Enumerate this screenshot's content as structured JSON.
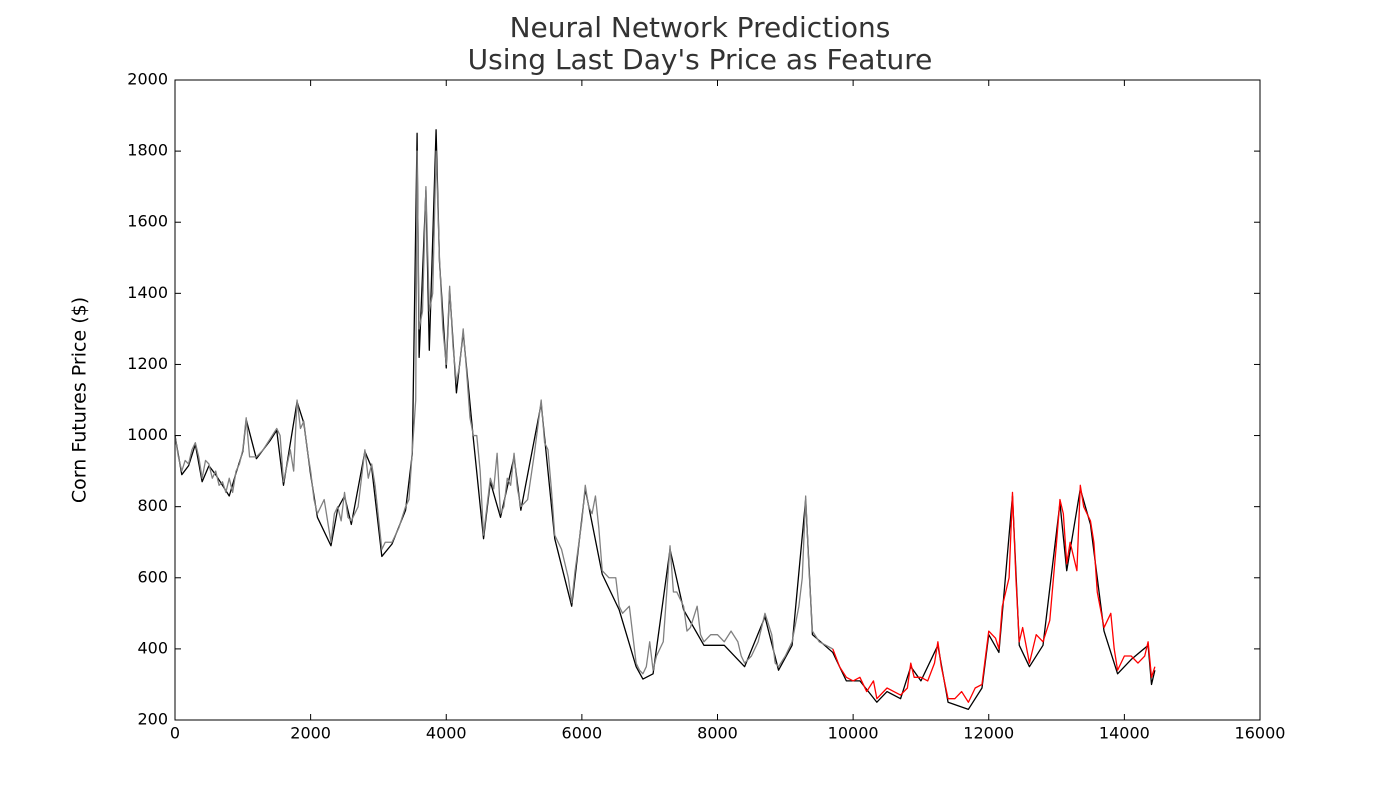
{
  "chart_data": {
    "type": "line",
    "title": [
      "Neural Network Predictions",
      "Using Last Day's Price as Feature"
    ],
    "y_label": "Corn Futures Price ($)",
    "xlim": [
      0,
      16000
    ],
    "xticks": [
      0,
      2000,
      4000,
      6000,
      8000,
      10000,
      12000,
      14000,
      16000
    ],
    "ylim": [
      200,
      2000
    ],
    "yticks": [
      200,
      400,
      600,
      800,
      1000,
      1200,
      1400,
      1600,
      1800,
      2000
    ],
    "series": [
      {
        "color": "#000000",
        "x": [
          0,
          100,
          200,
          300,
          400,
          500,
          600,
          700,
          800,
          900,
          1000,
          1050,
          1200,
          1400,
          1500,
          1600,
          1800,
          1900,
          2000,
          2100,
          2300,
          2400,
          2500,
          2600,
          2800,
          2900,
          3050,
          3200,
          3400,
          3500,
          3570,
          3600,
          3700,
          3750,
          3850,
          3900,
          4000,
          4050,
          4150,
          4250,
          4400,
          4550,
          4650,
          4800,
          5000,
          5100,
          5400,
          5600,
          5850,
          6050,
          6300,
          6550,
          6800,
          6900,
          7050,
          7300,
          7500,
          7800,
          8100,
          8400,
          8700,
          8900,
          9100,
          9300,
          9400,
          9700,
          9900,
          10100,
          10350,
          10500,
          10700,
          10850,
          11000,
          11250,
          11400,
          11700,
          11900,
          12000,
          12150,
          12350,
          12450,
          12600,
          12800,
          13050,
          13150,
          13350,
          13500,
          13700,
          13900,
          14100,
          14350,
          14400,
          14450
        ],
        "values": [
          1000,
          890,
          915,
          975,
          870,
          915,
          890,
          860,
          830,
          895,
          955,
          1045,
          935,
          985,
          1015,
          860,
          1095,
          1035,
          890,
          770,
          690,
          795,
          830,
          750,
          955,
          910,
          660,
          695,
          790,
          950,
          1850,
          1220,
          1690,
          1240,
          1860,
          1490,
          1190,
          1410,
          1120,
          1290,
          990,
          710,
          870,
          770,
          940,
          790,
          1090,
          710,
          520,
          850,
          610,
          510,
          350,
          315,
          330,
          680,
          510,
          410,
          410,
          350,
          490,
          340,
          410,
          820,
          440,
          390,
          310,
          310,
          250,
          280,
          260,
          350,
          310,
          410,
          250,
          230,
          290,
          440,
          390,
          830,
          410,
          350,
          410,
          810,
          620,
          850,
          750,
          450,
          330,
          370,
          410,
          300,
          340
        ]
      },
      {
        "color": "#808080",
        "x": [
          0,
          50,
          100,
          150,
          200,
          250,
          300,
          350,
          400,
          450,
          500,
          550,
          600,
          650,
          700,
          750,
          800,
          850,
          900,
          950,
          1000,
          1050,
          1100,
          1200,
          1300,
          1400,
          1500,
          1550,
          1600,
          1700,
          1750,
          1800,
          1850,
          1900,
          1950,
          2000,
          2050,
          2100,
          2200,
          2250,
          2300,
          2350,
          2400,
          2450,
          2500,
          2550,
          2600,
          2700,
          2750,
          2800,
          2850,
          2900,
          2950,
          3000,
          3050,
          3100,
          3200,
          3300,
          3400,
          3450,
          3500,
          3550,
          3570,
          3600,
          3650,
          3700,
          3750,
          3800,
          3850,
          3900,
          3950,
          4000,
          4050,
          4100,
          4150,
          4200,
          4250,
          4300,
          4350,
          4400,
          4450,
          4500,
          4550,
          4600,
          4650,
          4700,
          4750,
          4800,
          4850,
          4900,
          4950,
          5000,
          5050,
          5100,
          5200,
          5300,
          5400,
          5450,
          5500,
          5550,
          5600,
          5700,
          5800,
          5850,
          5900,
          6000,
          6050,
          6100,
          6150,
          6200,
          6250,
          6300,
          6400,
          6500,
          6550,
          6600,
          6700,
          6800,
          6850,
          6900,
          6950,
          7000,
          7050,
          7100,
          7200,
          7300,
          7350,
          7400,
          7500,
          7550,
          7600,
          7700,
          7750,
          7800,
          7900,
          8000,
          8100,
          8200,
          8300,
          8350,
          8400,
          8500,
          8600,
          8700,
          8800,
          8850,
          8900,
          9000,
          9100,
          9200,
          9250,
          9300,
          9350,
          9400,
          9500,
          9600,
          9700
        ],
        "values": [
          1000,
          940,
          900,
          930,
          920,
          960,
          980,
          940,
          880,
          930,
          920,
          880,
          900,
          860,
          870,
          840,
          880,
          840,
          900,
          920,
          960,
          1050,
          940,
          940,
          960,
          990,
          1020,
          1000,
          870,
          960,
          900,
          1100,
          1020,
          1040,
          960,
          900,
          820,
          780,
          820,
          760,
          700,
          780,
          800,
          760,
          840,
          770,
          760,
          800,
          880,
          960,
          880,
          920,
          860,
          770,
          680,
          700,
          700,
          740,
          800,
          820,
          960,
          1100,
          1800,
          1300,
          1350,
          1700,
          1350,
          1400,
          1800,
          1500,
          1300,
          1200,
          1420,
          1250,
          1150,
          1200,
          1300,
          1180,
          1050,
          1000,
          1000,
          900,
          720,
          800,
          880,
          850,
          950,
          780,
          800,
          880,
          860,
          950,
          850,
          800,
          820,
          950,
          1100,
          980,
          960,
          850,
          720,
          680,
          600,
          530,
          620,
          760,
          860,
          800,
          780,
          830,
          740,
          620,
          600,
          600,
          520,
          500,
          520,
          360,
          340,
          330,
          350,
          420,
          340,
          380,
          420,
          690,
          560,
          560,
          520,
          450,
          460,
          520,
          440,
          420,
          440,
          440,
          420,
          450,
          420,
          380,
          360,
          380,
          420,
          500,
          440,
          360,
          350,
          380,
          420,
          520,
          600,
          830,
          620,
          450,
          420,
          410,
          400
        ]
      },
      {
        "color": "#ff0000",
        "x": [
          9700,
          9800,
          9900,
          10000,
          10100,
          10200,
          10300,
          10350,
          10500,
          10600,
          10700,
          10800,
          10850,
          10900,
          11000,
          11100,
          11200,
          11250,
          11300,
          11400,
          11500,
          11600,
          11700,
          11800,
          11900,
          12000,
          12100,
          12150,
          12200,
          12300,
          12350,
          12400,
          12450,
          12500,
          12600,
          12700,
          12800,
          12900,
          13000,
          13050,
          13100,
          13150,
          13200,
          13300,
          13350,
          13400,
          13500,
          13550,
          13600,
          13700,
          13800,
          13850,
          13900,
          14000,
          14100,
          14200,
          14300,
          14350,
          14400,
          14450
        ],
        "values": [
          400,
          350,
          320,
          310,
          320,
          280,
          310,
          260,
          290,
          280,
          270,
          290,
          360,
          320,
          320,
          310,
          360,
          420,
          350,
          260,
          260,
          280,
          250,
          290,
          300,
          450,
          430,
          400,
          520,
          600,
          840,
          600,
          420,
          460,
          360,
          440,
          420,
          480,
          700,
          820,
          780,
          640,
          700,
          620,
          860,
          800,
          760,
          700,
          560,
          460,
          500,
          400,
          340,
          380,
          380,
          360,
          380,
          420,
          320,
          350
        ]
      }
    ]
  }
}
